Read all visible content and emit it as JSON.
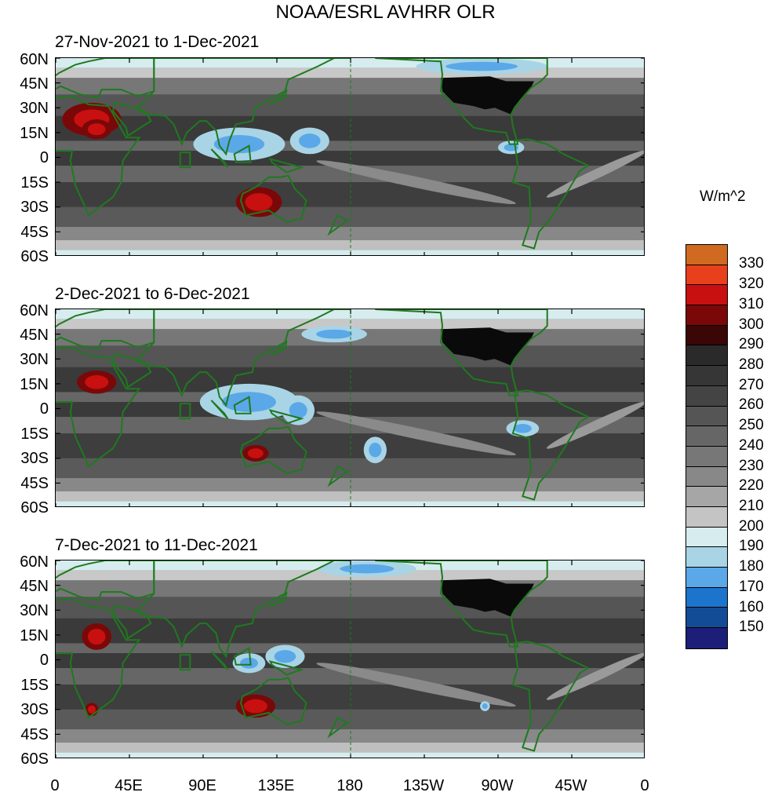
{
  "title": "NOAA/ESRL AVHRR OLR",
  "panels": [
    {
      "label": "27-Nov-2021 to 1-Dec-2021"
    },
    {
      "label": "2-Dec-2021 to 6-Dec-2021"
    },
    {
      "label": "7-Dec-2021 to 11-Dec-2021"
    }
  ],
  "lat_labels": [
    "60N",
    "45N",
    "30N",
    "15N",
    "0",
    "15S",
    "30S",
    "45S",
    "60S"
  ],
  "lon_labels": [
    "0",
    "45E",
    "90E",
    "135E",
    "180",
    "135W",
    "90W",
    "45W",
    "0"
  ],
  "colorbar": {
    "unit": "W/m^2",
    "labels": [
      "330",
      "320",
      "310",
      "300",
      "290",
      "280",
      "270",
      "260",
      "250",
      "240",
      "230",
      "220",
      "210",
      "200",
      "190",
      "180",
      "170",
      "160",
      "150"
    ],
    "colors": [
      "#d06a20",
      "#e8401c",
      "#c81010",
      "#7a0808",
      "#3a0606",
      "#2a2a2a",
      "#363636",
      "#444444",
      "#555555",
      "#666666",
      "#777777",
      "#888888",
      "#a6a6a6",
      "#c4c4c4",
      "#d6ecee",
      "#a8d4e6",
      "#5aa8e8",
      "#1c74cc",
      "#124c96",
      "#1c1e78"
    ]
  }
}
